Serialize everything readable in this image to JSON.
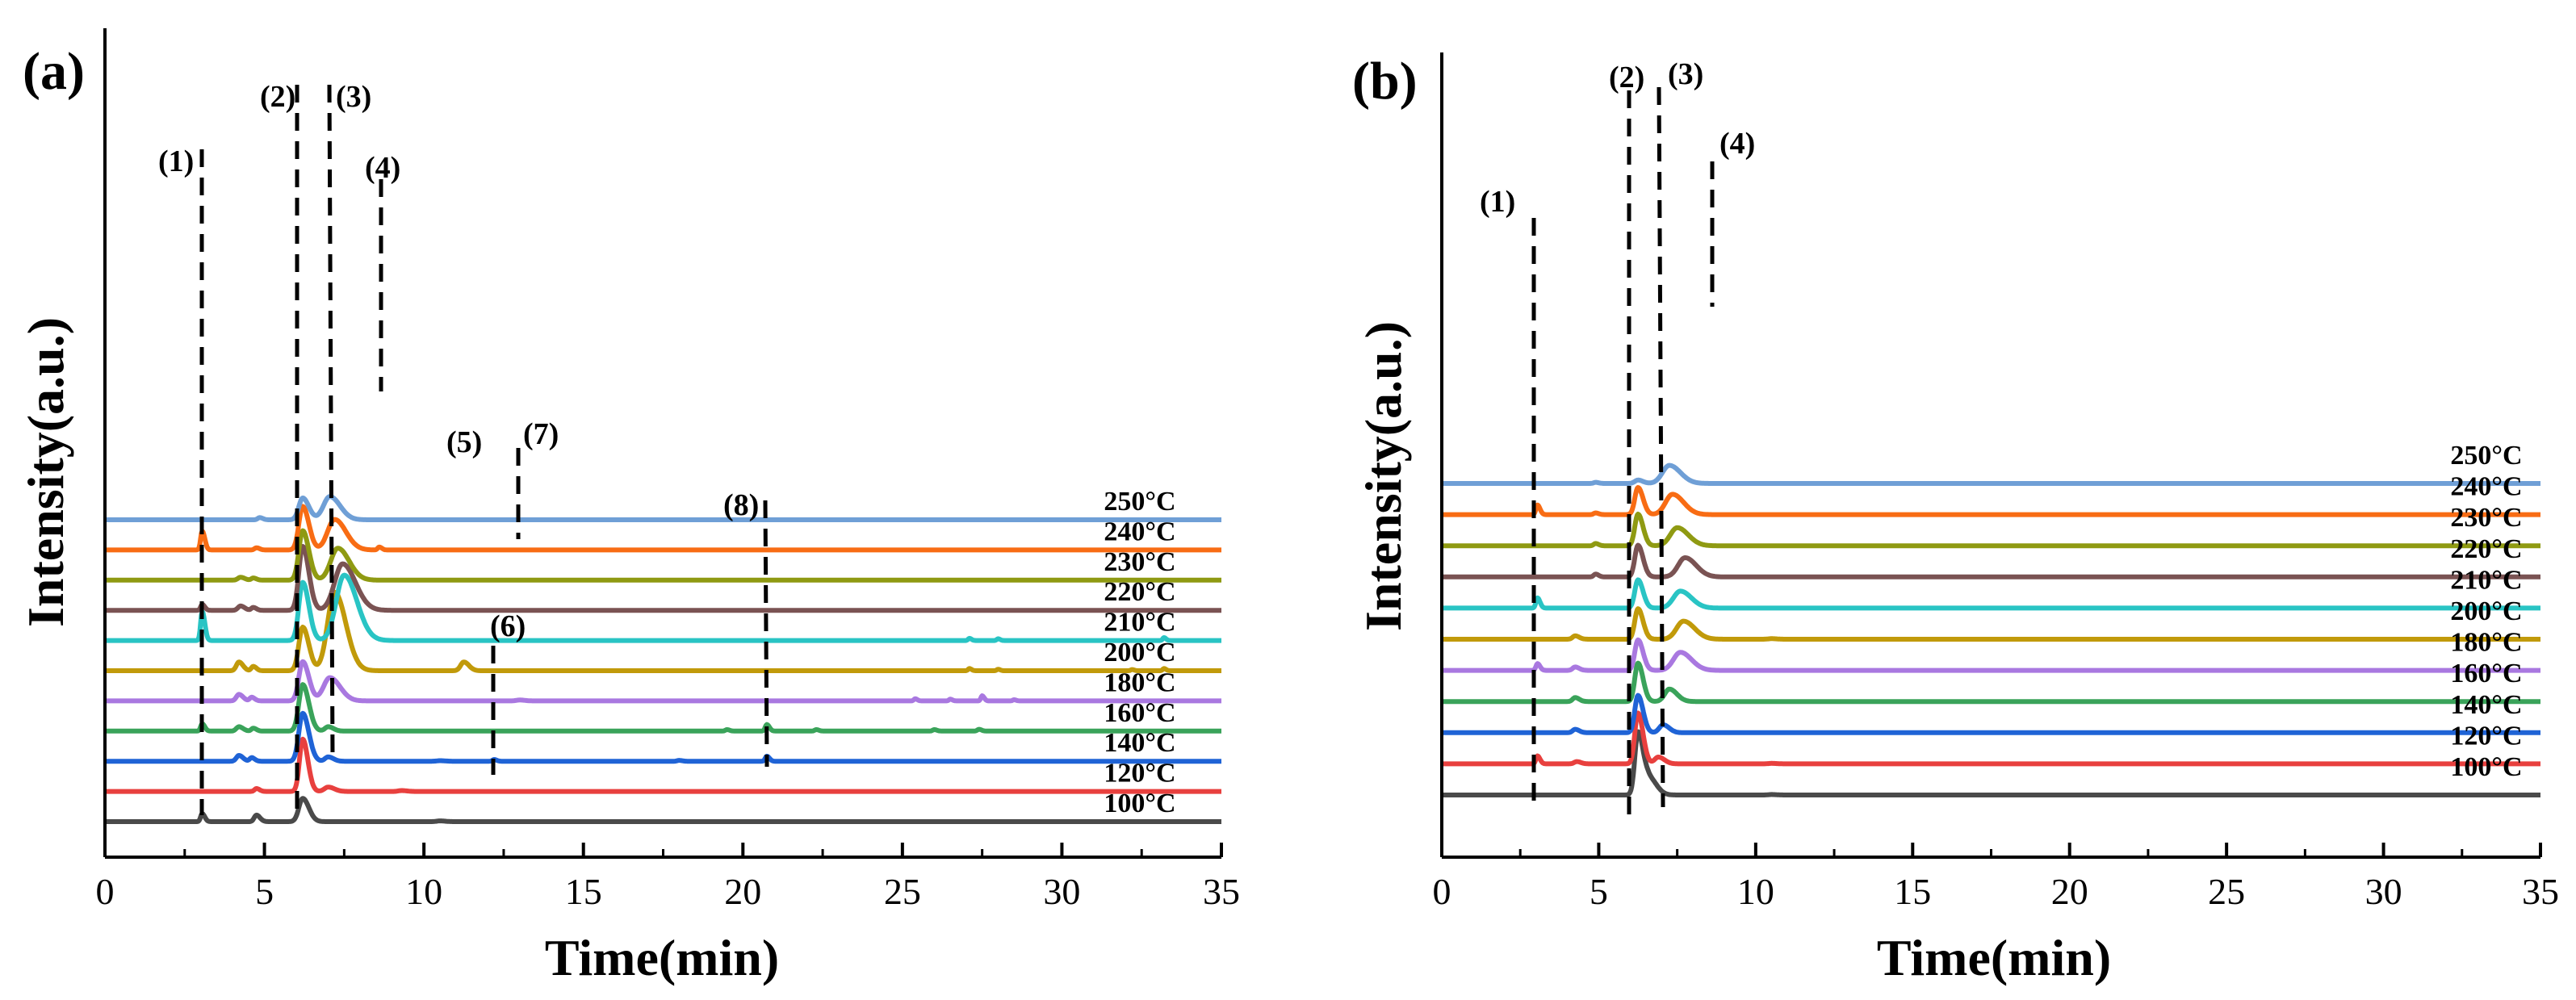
{
  "chart_data": [
    {
      "type": "line",
      "panel_label": "(a)",
      "xlabel": "Time(min)",
      "ylabel": "Intensity(a.u.)",
      "xlim": [
        0,
        35
      ],
      "xticks": [
        "0",
        "5",
        "10",
        "15",
        "20",
        "25",
        "30",
        "35"
      ],
      "series": [
        {
          "name": "100°C",
          "color": "#4a4a4a",
          "offset": 0.0,
          "peaks": [
            [
              3.05,
              0.55,
              0.05
            ],
            [
              4.75,
              0.45,
              0.07
            ],
            [
              6.2,
              1.6,
              0.12
            ],
            [
              10.5,
              0.05,
              0.1
            ]
          ]
        },
        {
          "name": "120°C",
          "color": "#e8403e",
          "offset": 1.0,
          "peaks": [
            [
              4.75,
              0.2,
              0.06
            ],
            [
              6.2,
              3.6,
              0.1
            ],
            [
              7.0,
              0.3,
              0.12
            ],
            [
              9.3,
              0.06,
              0.1
            ]
          ]
        },
        {
          "name": "140°C",
          "color": "#1f63d6",
          "offset": 2.0,
          "peaks": [
            [
              4.2,
              0.4,
              0.08
            ],
            [
              4.6,
              0.25,
              0.06
            ],
            [
              6.2,
              3.3,
              0.12
            ],
            [
              7.0,
              0.3,
              0.1
            ],
            [
              10.5,
              0.04,
              0.1
            ],
            [
              12.2,
              0.12,
              0.05
            ],
            [
              18.0,
              0.06,
              0.06
            ],
            [
              20.75,
              0.35,
              0.05
            ]
          ]
        },
        {
          "name": "160°C",
          "color": "#3aa35a",
          "offset": 3.0,
          "peaks": [
            [
              3.05,
              0.5,
              0.05
            ],
            [
              4.2,
              0.3,
              0.08
            ],
            [
              4.65,
              0.2,
              0.06
            ],
            [
              6.2,
              3.2,
              0.12
            ],
            [
              7.0,
              0.3,
              0.1
            ],
            [
              19.5,
              0.1,
              0.05
            ],
            [
              20.75,
              0.45,
              0.05
            ],
            [
              22.3,
              0.1,
              0.05
            ],
            [
              26.0,
              0.1,
              0.05
            ],
            [
              27.4,
              0.12,
              0.05
            ]
          ]
        },
        {
          "name": "180°C",
          "color": "#a978e0",
          "offset": 4.0,
          "peaks": [
            [
              4.2,
              0.45,
              0.08
            ],
            [
              4.6,
              0.25,
              0.06
            ],
            [
              6.2,
              2.7,
              0.12
            ],
            [
              7.05,
              1.6,
              0.2
            ],
            [
              13.0,
              0.06,
              0.1
            ],
            [
              25.4,
              0.15,
              0.04
            ],
            [
              26.5,
              0.12,
              0.04
            ],
            [
              27.5,
              0.35,
              0.04
            ],
            [
              28.5,
              0.08,
              0.04
            ]
          ]
        },
        {
          "name": "200°C",
          "color": "#c19a0a",
          "offset": 5.0,
          "peaks": [
            [
              4.2,
              0.6,
              0.08
            ],
            [
              4.65,
              0.3,
              0.06
            ],
            [
              6.2,
              3.0,
              0.12
            ],
            [
              7.2,
              5.4,
              0.22
            ],
            [
              11.25,
              0.6,
              0.1
            ],
            [
              27.1,
              0.15,
              0.04
            ],
            [
              28.0,
              0.1,
              0.04
            ],
            [
              32.2,
              0.08,
              0.04
            ],
            [
              33.2,
              0.15,
              0.04
            ]
          ]
        },
        {
          "name": "210°C",
          "color": "#29c4c4",
          "offset": 6.0,
          "peaks": [
            [
              3.05,
              2.0,
              0.05
            ],
            [
              6.2,
              4.0,
              0.12
            ],
            [
              7.5,
              4.5,
              0.25
            ],
            [
              27.1,
              0.15,
              0.04
            ],
            [
              28.0,
              0.12,
              0.04
            ],
            [
              33.2,
              0.2,
              0.04
            ]
          ]
        },
        {
          "name": "220°C",
          "color": "#7a5353",
          "offset": 7.0,
          "peaks": [
            [
              3.05,
              0.4,
              0.05
            ],
            [
              4.25,
              0.3,
              0.08
            ],
            [
              4.65,
              0.2,
              0.06
            ],
            [
              6.2,
              4.4,
              0.12
            ],
            [
              7.45,
              3.2,
              0.25
            ]
          ]
        },
        {
          "name": "230°C",
          "color": "#8f9a12",
          "offset": 8.0,
          "peaks": [
            [
              4.25,
              0.2,
              0.08
            ],
            [
              4.65,
              0.15,
              0.06
            ],
            [
              6.2,
              3.4,
              0.12
            ],
            [
              7.3,
              2.2,
              0.22
            ]
          ]
        },
        {
          "name": "240°C",
          "color": "#f86c14",
          "offset": 9.0,
          "peaks": [
            [
              3.05,
              1.3,
              0.05
            ],
            [
              4.75,
              0.15,
              0.06
            ],
            [
              6.2,
              3.0,
              0.12
            ],
            [
              7.2,
              2.1,
              0.22
            ],
            [
              8.6,
              0.2,
              0.05
            ]
          ]
        },
        {
          "name": "250°C",
          "color": "#6f9fd6",
          "offset": 10.0,
          "peaks": [
            [
              4.85,
              0.15,
              0.06
            ],
            [
              6.2,
              1.5,
              0.12
            ],
            [
              7.05,
              1.6,
              0.2
            ]
          ]
        }
      ],
      "peak_labels": [
        "(1)",
        "(2)",
        "(3)",
        "(4)",
        "(5)",
        "(6)",
        "(7)",
        "(8)"
      ]
    },
    {
      "type": "line",
      "panel_label": "(b)",
      "xlabel": "Time(min)",
      "ylabel": "Intensity(a.u.)",
      "xlim": [
        0,
        35
      ],
      "xticks": [
        "0",
        "5",
        "10",
        "15",
        "20",
        "25",
        "30",
        "35"
      ],
      "series": [
        {
          "name": "100°C",
          "color": "#4a4a4a",
          "offset": 0.0,
          "peaks": [
            [
              6.25,
              5.5,
              0.1
            ],
            [
              6.6,
              1.5,
              0.15
            ],
            [
              10.5,
              0.04,
              0.1
            ]
          ]
        },
        {
          "name": "120°C",
          "color": "#e8403e",
          "offset": 1.0,
          "peaks": [
            [
              3.05,
              0.7,
              0.05
            ],
            [
              4.3,
              0.2,
              0.08
            ],
            [
              6.25,
              4.5,
              0.1
            ],
            [
              6.9,
              0.6,
              0.12
            ],
            [
              10.5,
              0.04,
              0.1
            ]
          ]
        },
        {
          "name": "140°C",
          "color": "#1f63d6",
          "offset": 2.0,
          "peaks": [
            [
              4.25,
              0.3,
              0.08
            ],
            [
              6.25,
              3.3,
              0.1
            ],
            [
              7.05,
              0.7,
              0.12
            ]
          ]
        },
        {
          "name": "160°C",
          "color": "#3aa35a",
          "offset": 3.0,
          "peaks": [
            [
              4.25,
              0.35,
              0.08
            ],
            [
              6.25,
              3.4,
              0.1
            ],
            [
              7.25,
              1.1,
              0.15
            ]
          ]
        },
        {
          "name": "180°C",
          "color": "#a978e0",
          "offset": 4.0,
          "peaks": [
            [
              3.05,
              0.6,
              0.05
            ],
            [
              4.25,
              0.3,
              0.08
            ],
            [
              6.25,
              2.7,
              0.1
            ],
            [
              7.6,
              1.6,
              0.22
            ]
          ]
        },
        {
          "name": "200°C",
          "color": "#c19a0a",
          "offset": 5.0,
          "peaks": [
            [
              4.25,
              0.3,
              0.08
            ],
            [
              6.25,
              2.7,
              0.1
            ],
            [
              7.7,
              1.6,
              0.22
            ],
            [
              10.5,
              0.05,
              0.1
            ]
          ]
        },
        {
          "name": "210°C",
          "color": "#29c4c4",
          "offset": 6.0,
          "peaks": [
            [
              3.05,
              0.9,
              0.05
            ],
            [
              6.25,
              2.5,
              0.1
            ],
            [
              7.6,
              1.5,
              0.22
            ]
          ]
        },
        {
          "name": "220°C",
          "color": "#7a5353",
          "offset": 7.0,
          "peaks": [
            [
              4.9,
              0.25,
              0.06
            ],
            [
              6.25,
              2.8,
              0.1
            ],
            [
              7.75,
              1.7,
              0.22
            ]
          ]
        },
        {
          "name": "230°C",
          "color": "#8f9a12",
          "offset": 8.0,
          "peaks": [
            [
              4.9,
              0.2,
              0.06
            ],
            [
              6.25,
              2.8,
              0.1
            ],
            [
              7.5,
              1.6,
              0.22
            ]
          ]
        },
        {
          "name": "240°C",
          "color": "#f86c14",
          "offset": 9.0,
          "peaks": [
            [
              3.05,
              0.85,
              0.05
            ],
            [
              4.9,
              0.15,
              0.06
            ],
            [
              6.25,
              2.4,
              0.1
            ],
            [
              7.35,
              1.8,
              0.22
            ]
          ]
        },
        {
          "name": "250°C",
          "color": "#6f9fd6",
          "offset": 10.0,
          "peaks": [
            [
              4.9,
              0.1,
              0.06
            ],
            [
              6.25,
              0.3,
              0.1
            ],
            [
              7.25,
              1.6,
              0.22
            ]
          ]
        }
      ],
      "peak_labels": [
        "(1)",
        "(2)",
        "(3)",
        "(4)"
      ]
    }
  ]
}
